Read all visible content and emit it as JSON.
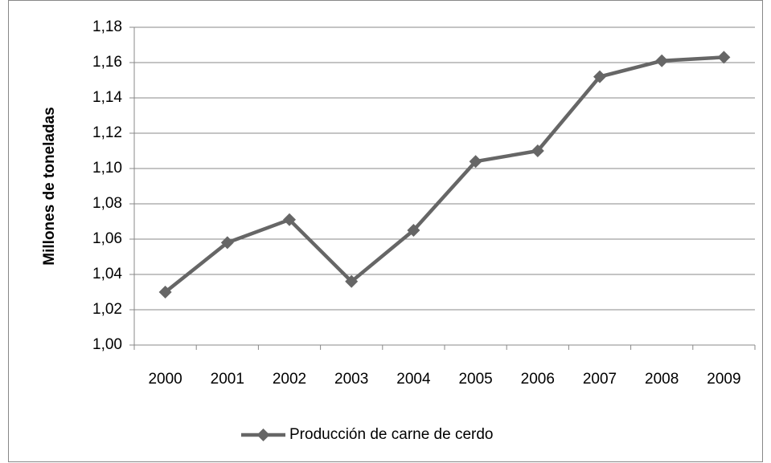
{
  "chart_data": {
    "type": "line",
    "y_label": "Millones de toneladas",
    "categories": [
      "2000",
      "2001",
      "2002",
      "2003",
      "2004",
      "2005",
      "2006",
      "2007",
      "2008",
      "2009"
    ],
    "series": [
      {
        "name": "Producción de carne de cerdo",
        "color": "#666666",
        "values": [
          1.03,
          1.058,
          1.071,
          1.036,
          1.065,
          1.104,
          1.11,
          1.152,
          1.161,
          1.163
        ]
      }
    ],
    "ylim": [
      1.0,
      1.18
    ],
    "yticks": [
      {
        "value": 1.0,
        "label": "1,00"
      },
      {
        "value": 1.02,
        "label": "1,02"
      },
      {
        "value": 1.04,
        "label": "1,04"
      },
      {
        "value": 1.06,
        "label": "1,06"
      },
      {
        "value": 1.08,
        "label": "1,08"
      },
      {
        "value": 1.1,
        "label": "1,10"
      },
      {
        "value": 1.12,
        "label": "1,12"
      },
      {
        "value": 1.14,
        "label": "1,14"
      },
      {
        "value": 1.16,
        "label": "1,16"
      },
      {
        "value": 1.18,
        "label": "1,18"
      }
    ],
    "grid": true,
    "legend": "bottom"
  }
}
